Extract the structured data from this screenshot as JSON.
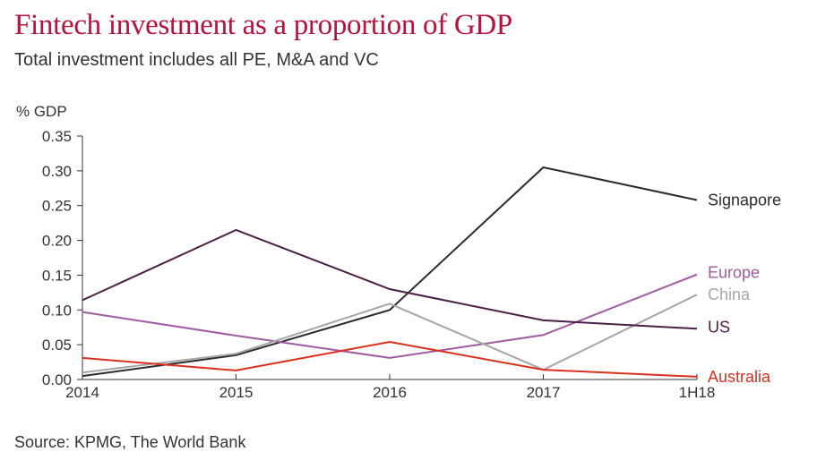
{
  "title": "Fintech investment as a proportion of GDP",
  "subtitle": "Total investment includes all PE, M&A and VC",
  "source": "Source: KPMG, The World Bank",
  "chart_data": {
    "type": "line",
    "ylabel": "% GDP",
    "xlabel": "",
    "x": [
      "2014",
      "2015",
      "2016",
      "2017",
      "1H18"
    ],
    "yticks": [
      "0.00",
      "0.05",
      "0.10",
      "0.15",
      "0.20",
      "0.25",
      "0.30",
      "0.35"
    ],
    "ylim": [
      0,
      0.35
    ],
    "grid": false,
    "legend": "direct labels at line ends",
    "series": [
      {
        "name": "Signapore",
        "color": "#2b2b2b",
        "values": [
          0.005,
          0.035,
          0.1,
          0.305,
          0.258
        ]
      },
      {
        "name": "Europe",
        "color": "#a05aa0",
        "values": [
          0.097,
          0.063,
          0.031,
          0.064,
          0.151
        ]
      },
      {
        "name": "China",
        "color": "#a6a6a6",
        "values": [
          0.01,
          0.037,
          0.109,
          0.014,
          0.122
        ]
      },
      {
        "name": "US",
        "color": "#4a1f45",
        "values": [
          0.114,
          0.215,
          0.13,
          0.085,
          0.073
        ]
      },
      {
        "name": "Australia",
        "color": "#d9301e",
        "values": [
          0.031,
          0.013,
          0.054,
          0.014,
          0.004
        ]
      }
    ]
  }
}
